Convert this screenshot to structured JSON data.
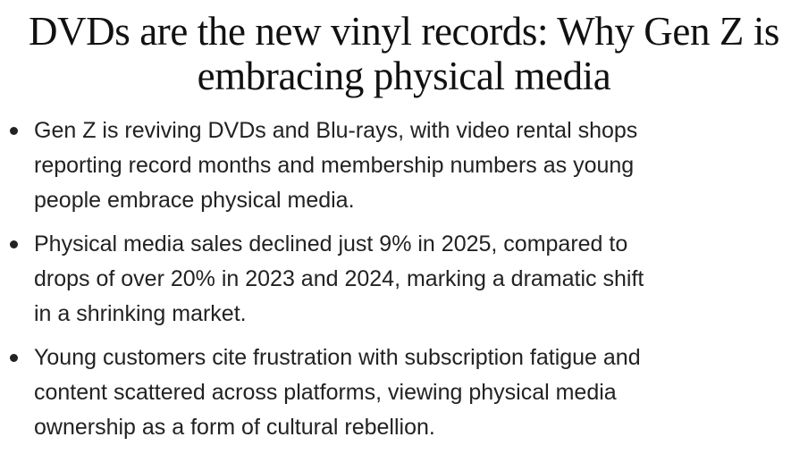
{
  "headline": {
    "line1": "DVDs are the new vinyl records: Why Gen Z is",
    "line2": "embracing physical media"
  },
  "summary": [
    {
      "lines": [
        "Gen Z is reviving DVDs and Blu-rays, with video rental shops",
        "reporting record months and membership numbers as young",
        "people embrace physical media."
      ]
    },
    {
      "lines": [
        "Physical media sales declined just 9% in 2025, compared to",
        "drops of over 20% in 2023 and 2024, marking a dramatic shift",
        "in a shrinking market."
      ]
    },
    {
      "lines": [
        "Young customers cite frustration with subscription fatigue and",
        "content scattered across platforms, viewing physical media",
        "ownership as a form of cultural rebellion."
      ]
    }
  ]
}
